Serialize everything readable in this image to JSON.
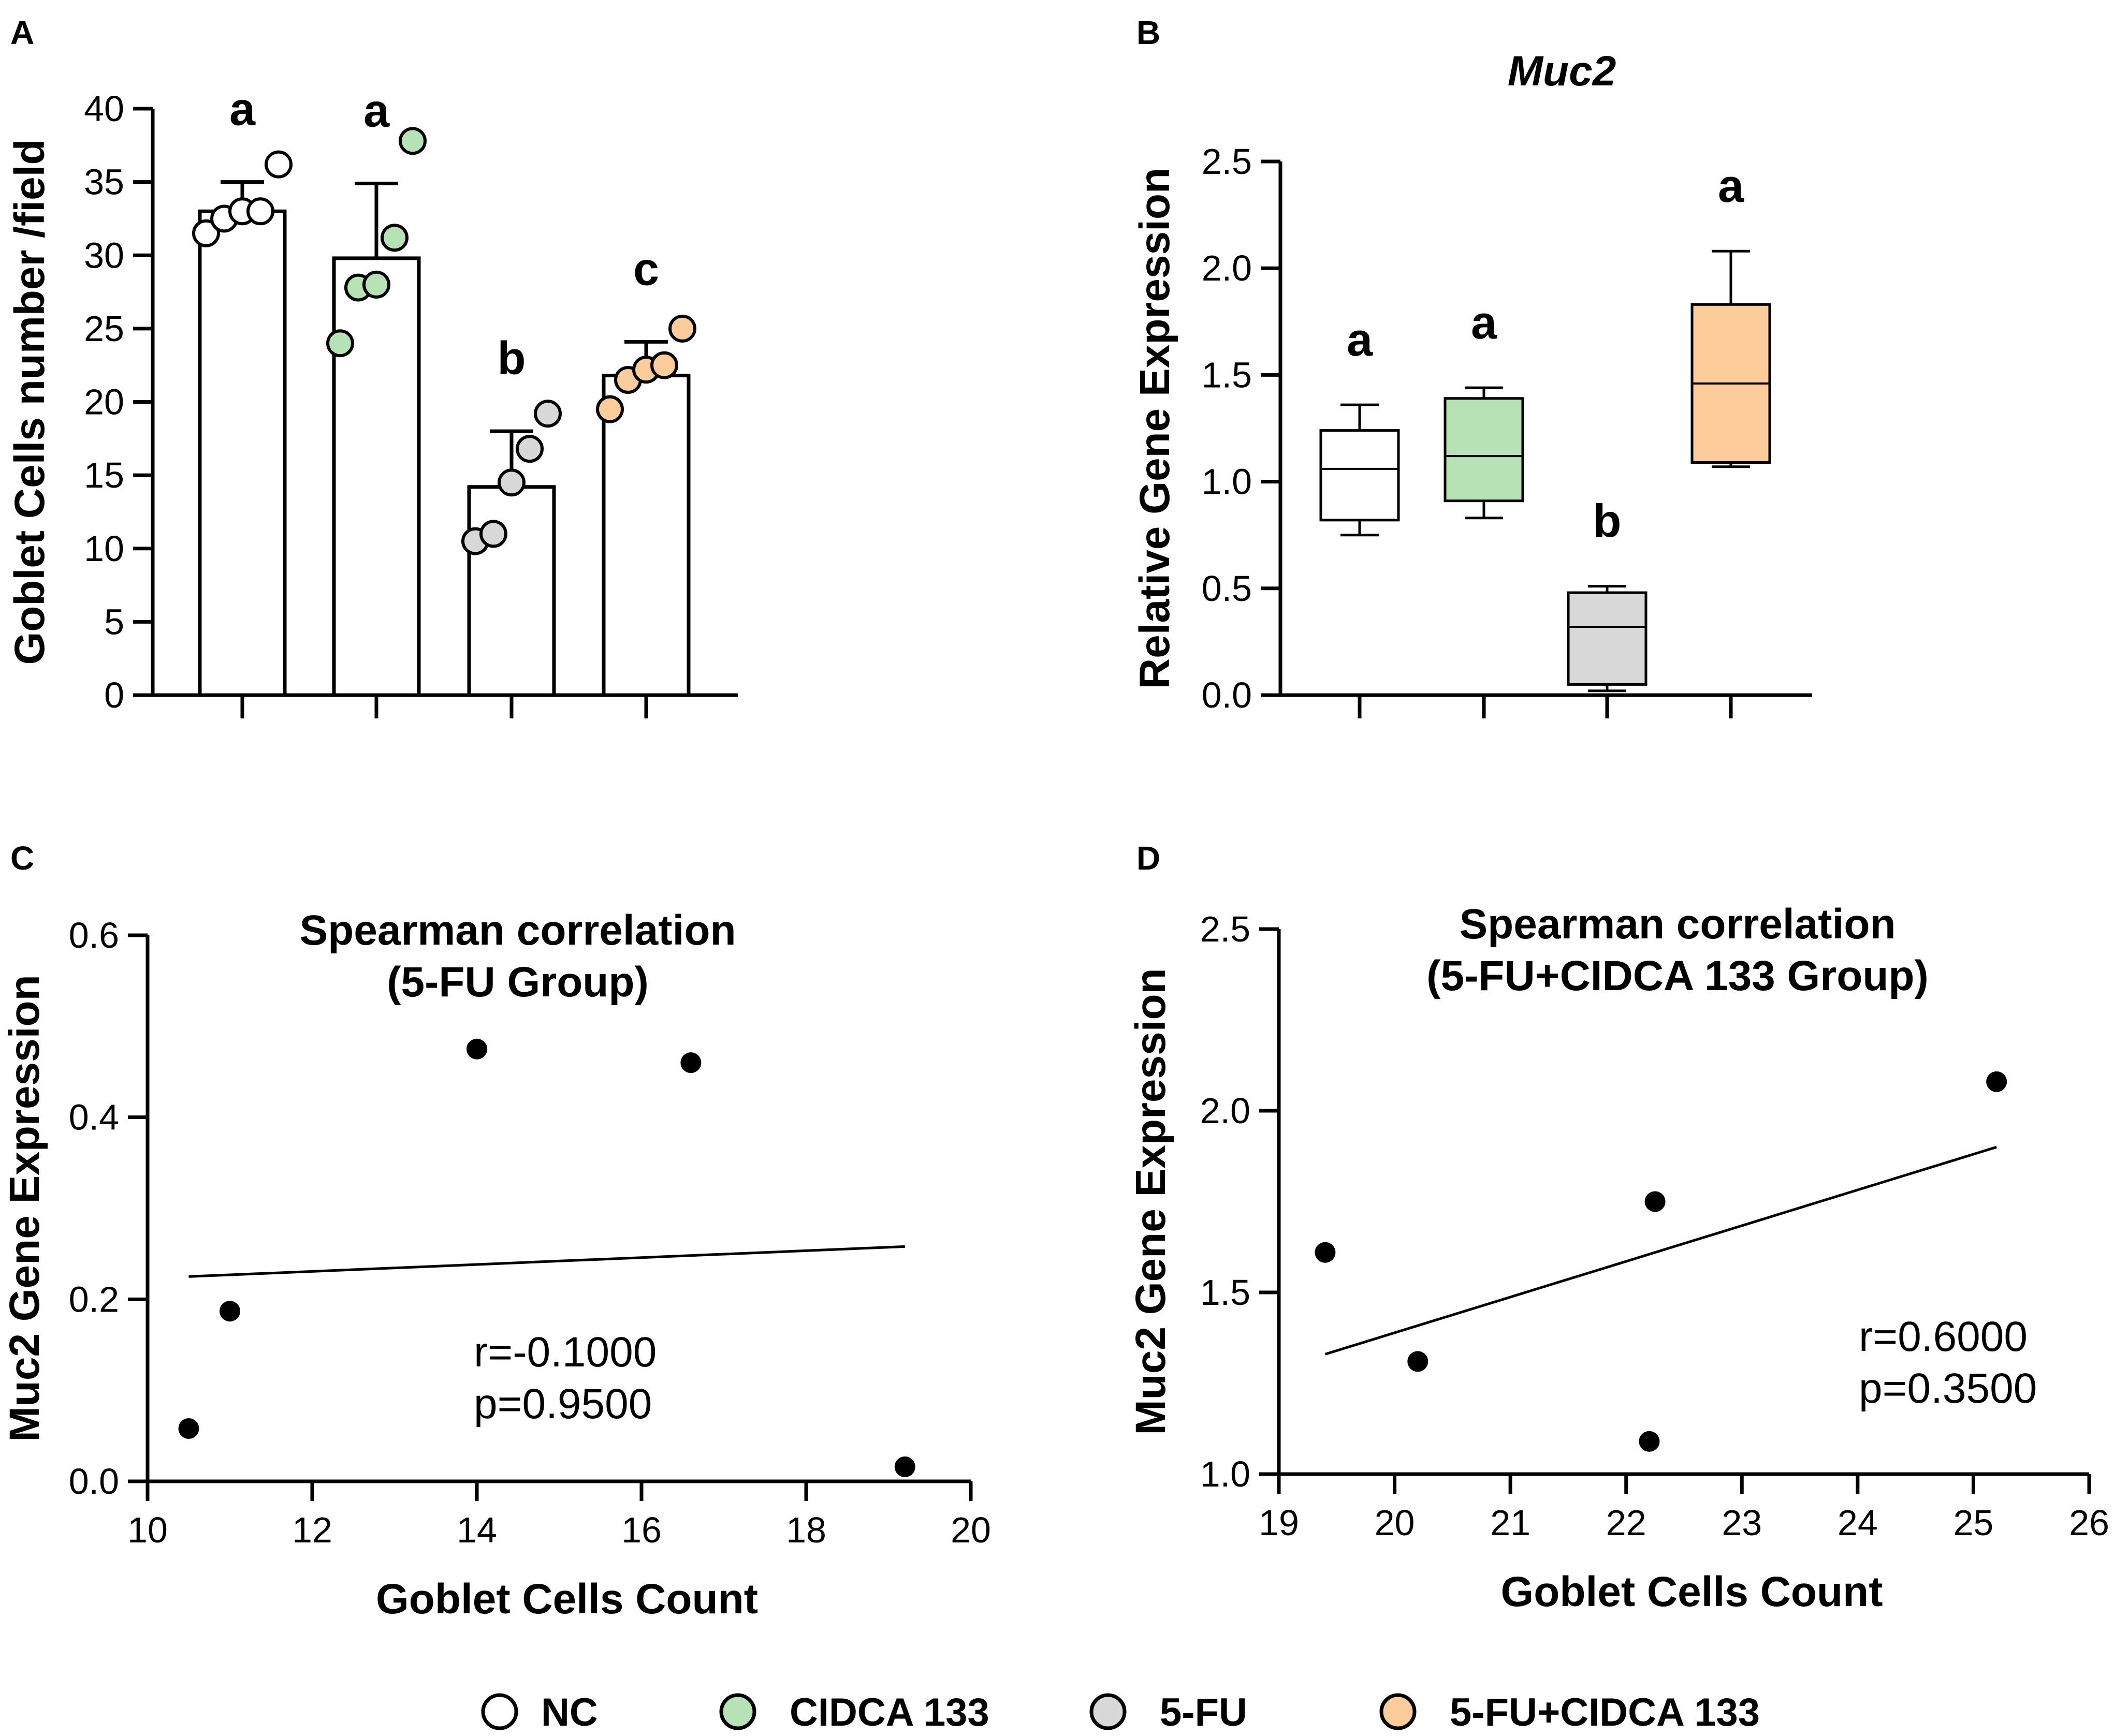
{
  "colors": {
    "NC": "#ffffff",
    "CIDCA 133": "#b7e2b5",
    "5-FU": "#d8d8d8",
    "5-FU+CIDCA 133": "#fccc9a",
    "ink": "#000000"
  },
  "legend": [
    {
      "label": "NC",
      "group": "NC"
    },
    {
      "label": "CIDCA 133",
      "group": "CIDCA 133"
    },
    {
      "label": "5-FU",
      "group": "5-FU"
    },
    {
      "label": "5-FU+CIDCA 133",
      "group": "5-FU+CIDCA 133"
    }
  ],
  "chart_data": [
    {
      "panel": "A",
      "type": "bar",
      "title": "",
      "xlabel": "",
      "ylabel": "Goblet Cells number /field",
      "ylim": [
        0,
        40
      ],
      "yticks": [
        0,
        5,
        10,
        15,
        20,
        25,
        30,
        35,
        40
      ],
      "categories": [
        "NC",
        "CIDCA 133",
        "5-FU",
        "5-FU+CIDCA 133"
      ],
      "values": [
        33,
        29.8,
        14.2,
        21.8
      ],
      "errors": [
        2.0,
        5.1,
        3.8,
        2.3
      ],
      "points": [
        [
          31.5,
          32.5,
          33,
          33,
          36.2
        ],
        [
          24,
          27.8,
          28,
          31.2,
          37.8
        ],
        [
          10.5,
          11,
          14.5,
          16.8,
          19.2
        ],
        [
          19.5,
          21.5,
          22.2,
          22.5,
          25
        ]
      ],
      "significance": [
        "a",
        "a",
        "b",
        "c"
      ]
    },
    {
      "panel": "B",
      "type": "box",
      "title": "Muc2",
      "xlabel": "",
      "ylabel": "Relative Gene Expression",
      "ylim": [
        0,
        2.5
      ],
      "yticks": [
        "0.0",
        "0.5",
        "1.0",
        "1.5",
        "2.0",
        "2.5"
      ],
      "categories": [
        "NC",
        "CIDCA 133",
        "5-FU",
        "5-FU+CIDCA 133"
      ],
      "boxes": [
        {
          "min": 0.75,
          "q1": 0.82,
          "median": 1.06,
          "q3": 1.24,
          "max": 1.36
        },
        {
          "min": 0.83,
          "q1": 0.91,
          "median": 1.12,
          "q3": 1.39,
          "max": 1.44
        },
        {
          "min": 0.02,
          "q1": 0.05,
          "median": 0.32,
          "q3": 0.48,
          "max": 0.51
        },
        {
          "min": 1.07,
          "q1": 1.09,
          "median": 1.46,
          "q3": 1.83,
          "max": 2.08
        }
      ],
      "significance": [
        "a",
        "a",
        "b",
        "a"
      ]
    },
    {
      "panel": "C",
      "type": "scatter",
      "title": [
        "Spearman correlation",
        "(5-FU Group)"
      ],
      "xlabel": "Goblet Cells Count",
      "ylabel": "Muc2 Gene Expression",
      "xlim": [
        10,
        20
      ],
      "ylim": [
        0,
        0.6
      ],
      "xticks": [
        10,
        12,
        14,
        16,
        18,
        20
      ],
      "yticks": [
        "0.0",
        "0.2",
        "0.4",
        "0.6"
      ],
      "x": [
        10.5,
        11.0,
        14.0,
        16.6,
        19.2
      ],
      "y": [
        0.058,
        0.187,
        0.475,
        0.46,
        0.016
      ],
      "fit": {
        "x": [
          10.5,
          19.2
        ],
        "y": [
          0.225,
          0.258
        ]
      },
      "r_label": "r=-0.1000",
      "p_label": "p=0.9500"
    },
    {
      "panel": "D",
      "type": "scatter",
      "title": [
        "Spearman correlation",
        "(5-FU+CIDCA 133 Group)"
      ],
      "xlabel": "Goblet Cells Count",
      "ylabel": "Muc2 Gene Expression",
      "xlim": [
        19,
        26
      ],
      "ylim": [
        1.0,
        2.5
      ],
      "xticks": [
        19,
        20,
        21,
        22,
        23,
        24,
        25,
        26
      ],
      "yticks": [
        "1.0",
        "1.5",
        "2.0",
        "2.5"
      ],
      "x": [
        19.4,
        20.2,
        22.2,
        22.25,
        25.2
      ],
      "y": [
        1.61,
        1.31,
        1.09,
        1.75,
        2.08
      ],
      "fit": {
        "x": [
          19.4,
          25.2
        ],
        "y": [
          1.33,
          1.9
        ]
      },
      "r_label": "r=0.6000",
      "p_label": "p=0.3500"
    }
  ]
}
